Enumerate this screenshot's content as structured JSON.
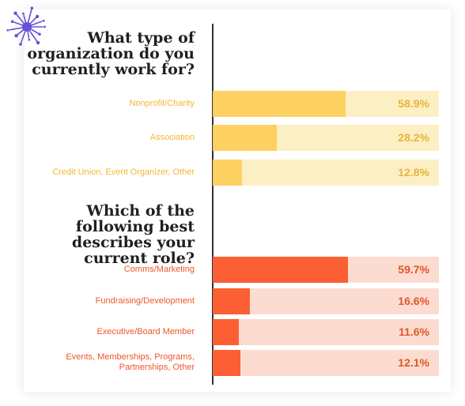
{
  "colors": {
    "org_fill": "#fcd061",
    "org_track": "#fdefc4",
    "org_text": "#f4b731",
    "org_value": "#e7b43a",
    "role_fill": "#fc5f33",
    "role_track": "#fcdcd0",
    "role_text": "#ee5727",
    "role_value": "#e3552a",
    "splat": "#6750d6"
  },
  "chart_data": [
    {
      "type": "bar",
      "orientation": "horizontal",
      "title": "What type of organization do you currently work for?",
      "categories": [
        "Nonprofit/Charity",
        "Association",
        "Credit Union, Event Organizer, Other"
      ],
      "values": [
        58.9,
        28.2,
        12.8
      ],
      "value_labels": [
        "58.9%",
        "28.2%",
        "12.8%"
      ],
      "xlim": [
        0,
        100
      ],
      "grid": false
    },
    {
      "type": "bar",
      "orientation": "horizontal",
      "title": "Which of the following best describes your current role?",
      "categories": [
        "Comms/Marketing",
        "Fundraising/Development",
        "Executive/Board Member",
        "Events, Memberships, Programs, Partnerships, Other"
      ],
      "values": [
        59.7,
        16.6,
        11.6,
        12.1
      ],
      "value_labels": [
        "59.7%",
        "16.6%",
        "11.6%",
        "12.1%"
      ],
      "xlim": [
        0,
        100
      ],
      "grid": false
    }
  ]
}
